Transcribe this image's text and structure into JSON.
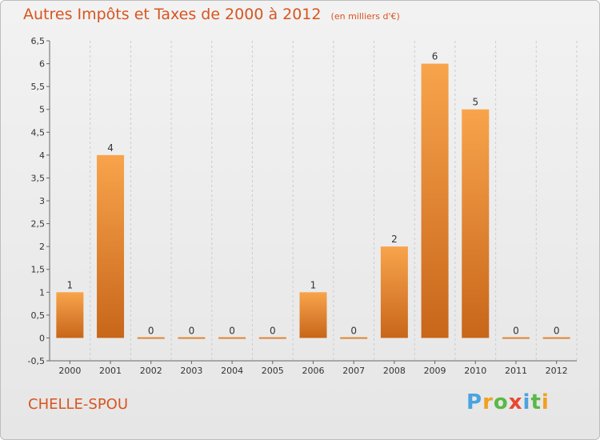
{
  "title": "Autres Impôts et Taxes de 2000 à 2012",
  "unit_note": "(en milliers d'€)",
  "commune": "CHELLE-SPOU",
  "logo": {
    "letters": [
      "P",
      "r",
      "o",
      "x",
      "i",
      "t",
      "i"
    ],
    "colors": [
      "#4aa3df",
      "#f0a020",
      "#58b947",
      "#e8482f",
      "#4aa3df",
      "#58b947",
      "#f0a020"
    ]
  },
  "colors": {
    "bar_top": "#f8a44c",
    "bar_bottom": "#c8661a",
    "axis": "#666666",
    "grid": "#cccccc",
    "title": "#d9541e"
  },
  "chart_data": {
    "type": "bar",
    "title": "Autres Impôts et Taxes de 2000 à 2012",
    "subtitle": "(en milliers d'€)",
    "categories": [
      "2000",
      "2001",
      "2002",
      "2003",
      "2004",
      "2005",
      "2006",
      "2007",
      "2008",
      "2009",
      "2010",
      "2011",
      "2012"
    ],
    "values": [
      1,
      4,
      0,
      0,
      0,
      0,
      1,
      0,
      2,
      6,
      5,
      0,
      0
    ],
    "ylim": [
      -0.5,
      6.5
    ],
    "yticks": [
      "-0,5",
      "0",
      "0,5",
      "1",
      "1,5",
      "2",
      "2,5",
      "3",
      "3,5",
      "4",
      "4,5",
      "5",
      "5,5",
      "6",
      "6,5"
    ],
    "ytick_values": [
      -0.5,
      0,
      0.5,
      1,
      1.5,
      2,
      2.5,
      3,
      3.5,
      4,
      4.5,
      5,
      5.5,
      6,
      6.5
    ],
    "grid": "vertical dashed",
    "xlabel": "",
    "ylabel": ""
  }
}
